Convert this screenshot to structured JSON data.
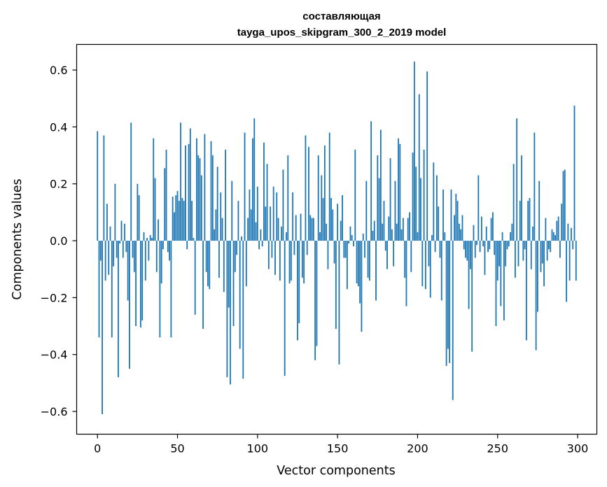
{
  "chart_data": {
    "type": "bar",
    "title_line1": "составляющая",
    "title_line2": "tayga_upos_skipgram_300_2_2019 model",
    "xlabel": "Vector components",
    "ylabel": "Components values",
    "xlim": [
      -13,
      312
    ],
    "ylim": [
      -0.68,
      0.69
    ],
    "xticks": [
      0,
      50,
      100,
      150,
      200,
      250,
      300
    ],
    "xtick_labels": [
      "0",
      "50",
      "100",
      "150",
      "200",
      "250",
      "300"
    ],
    "yticks": [
      -0.6,
      -0.4,
      -0.2,
      0.0,
      0.2,
      0.4,
      0.6
    ],
    "ytick_labels": [
      "−0.6",
      "−0.4",
      "−0.2",
      "0.0",
      "0.2",
      "0.4",
      "0.6"
    ],
    "bar_color": "#1f77b4",
    "grid": false,
    "values": [
      0.385,
      -0.34,
      -0.07,
      -0.61,
      0.37,
      -0.14,
      0.13,
      -0.12,
      0.05,
      -0.34,
      -0.09,
      0.2,
      -0.06,
      -0.48,
      -0.01,
      0.07,
      -0.06,
      0.06,
      -0.04,
      -0.21,
      -0.45,
      0.415,
      -0.06,
      -0.11,
      -0.3,
      0.2,
      0.16,
      -0.305,
      -0.28,
      0.03,
      -0.14,
      0.01,
      -0.07,
      0.02,
      0.01,
      0.36,
      0.22,
      -0.11,
      0.075,
      -0.34,
      -0.15,
      -0.03,
      0.255,
      0.32,
      -0.04,
      -0.07,
      -0.34,
      0.155,
      0.1,
      0.16,
      0.175,
      0.14,
      0.415,
      0.15,
      0.14,
      0.335,
      -0.03,
      0.34,
      0.395,
      0.14,
      0.01,
      -0.26,
      0.36,
      0.3,
      0.29,
      0.23,
      -0.31,
      0.375,
      -0.11,
      -0.16,
      -0.17,
      0.35,
      0.3,
      0.04,
      0.11,
      0.26,
      -0.13,
      0.17,
      0.08,
      -0.18,
      0.32,
      -0.48,
      -0.235,
      -0.505,
      0.21,
      -0.3,
      -0.11,
      -0.05,
      0.14,
      -0.38,
      0.015,
      -0.485,
      0.38,
      -0.16,
      0.08,
      0.18,
      0.11,
      0.36,
      0.43,
      0.065,
      0.19,
      -0.03,
      0.04,
      -0.02,
      0.345,
      0.12,
      0.27,
      -0.1,
      0.12,
      -0.06,
      0.19,
      -0.12,
      0.17,
      0.08,
      -0.14,
      0.05,
      0.25,
      -0.475,
      0.03,
      0.3,
      -0.15,
      -0.14,
      0.17,
      -0.05,
      0.09,
      -0.35,
      -0.29,
      0.095,
      -0.13,
      -0.15,
      0.37,
      -0.05,
      0.33,
      0.09,
      0.08,
      0.08,
      -0.42,
      -0.37,
      0.3,
      0.03,
      0.23,
      0.15,
      0.335,
      0.06,
      -0.1,
      0.38,
      0.15,
      0.11,
      -0.08,
      -0.31,
      0.13,
      -0.435,
      0.07,
      0.16,
      -0.06,
      -0.06,
      -0.17,
      -0.01,
      0.05,
      0.02,
      -0.02,
      0.32,
      -0.15,
      -0.16,
      -0.22,
      -0.32,
      0.025,
      -0.06,
      0.21,
      -0.13,
      -0.14,
      0.42,
      0.035,
      0.07,
      -0.21,
      0.3,
      0.22,
      0.39,
      0.06,
      0.14,
      -0.035,
      -0.1,
      0.085,
      0.29,
      0.04,
      -0.09,
      0.21,
      0.06,
      0.36,
      0.34,
      0.04,
      0.08,
      -0.13,
      -0.23,
      0.08,
      0.1,
      -0.11,
      0.31,
      0.63,
      0.26,
      0.03,
      0.515,
      0.22,
      -0.16,
      0.32,
      -0.17,
      0.595,
      -0.09,
      -0.2,
      0.02,
      0.275,
      -0.04,
      0.23,
      0.12,
      -0.06,
      -0.21,
      0.18,
      0.03,
      -0.44,
      -0.38,
      -0.43,
      0.18,
      -0.56,
      0.09,
      0.165,
      0.14,
      0.06,
      0.04,
      0.09,
      -0.03,
      -0.06,
      -0.07,
      -0.24,
      -0.1,
      -0.39,
      0.055,
      -0.06,
      -0.015,
      0.23,
      -0.04,
      0.085,
      -0.02,
      -0.12,
      0.05,
      -0.04,
      -0.03,
      0.08,
      0.1,
      -0.05,
      -0.3,
      -0.14,
      -0.09,
      -0.23,
      0.03,
      -0.28,
      -0.09,
      -0.03,
      -0.02,
      0.03,
      0.06,
      0.27,
      -0.13,
      0.43,
      -0.09,
      0.14,
      0.3,
      -0.07,
      -0.03,
      -0.35,
      0.14,
      0.15,
      -0.1,
      0.05,
      0.38,
      -0.385,
      -0.25,
      0.21,
      -0.11,
      -0.08,
      -0.16,
      0.08,
      -0.07,
      -0.03,
      -0.04,
      0.04,
      0.03,
      0.02,
      0.07,
      0.085,
      -0.06,
      0.13,
      0.245,
      0.25,
      -0.215,
      0.06,
      -0.14,
      0.045,
      -0.03,
      0.475,
      -0.14
    ]
  }
}
